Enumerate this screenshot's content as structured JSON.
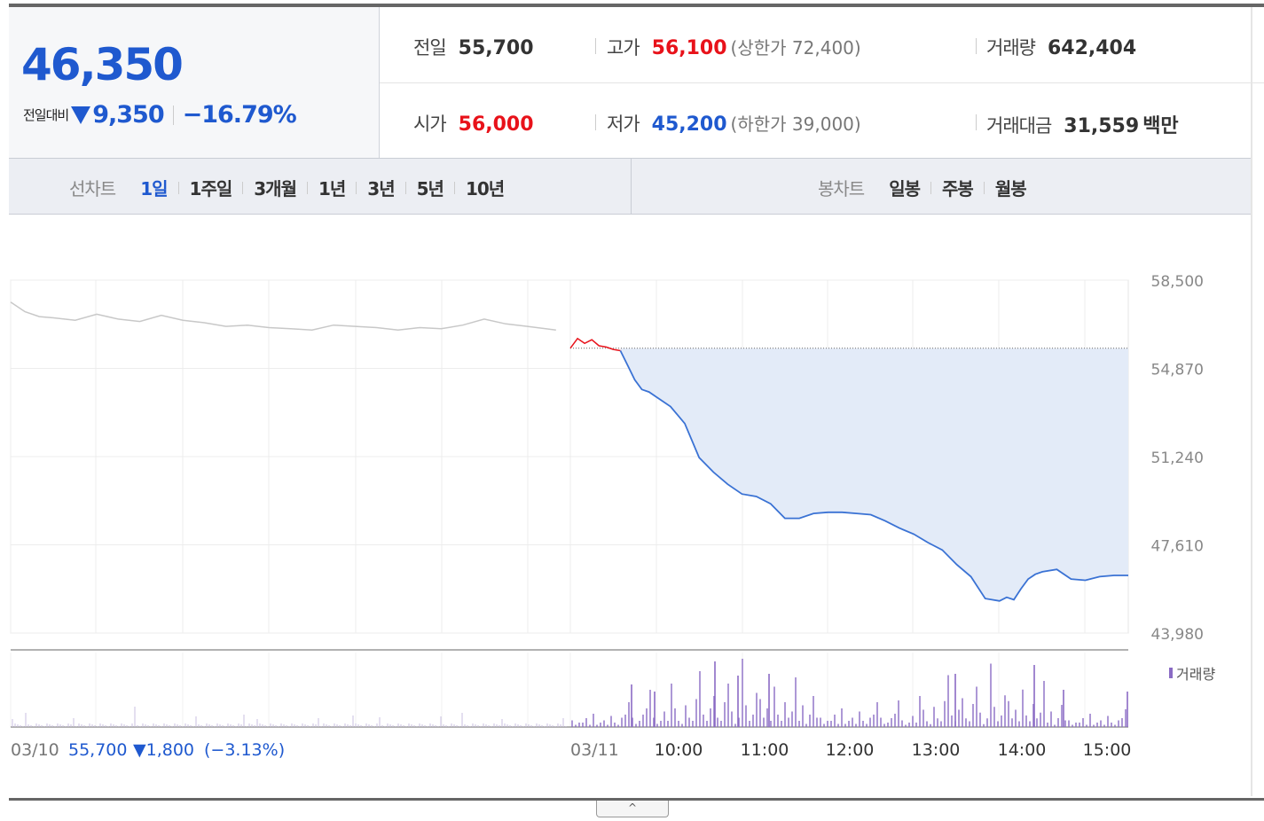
{
  "quote": {
    "price": "46,350",
    "change_label": "전일대비",
    "change_value": "9,350",
    "change_pct": "−16.79%"
  },
  "stats": {
    "prev_label": "전일",
    "prev_value": "55,700",
    "high_label": "고가",
    "high_value": "56,100",
    "upper_limit": "(상한가 72,400)",
    "volume_label": "거래량",
    "volume_value": "642,404",
    "open_label": "시가",
    "open_value": "56,000",
    "low_label": "저가",
    "low_value": "45,200",
    "lower_limit": "(하한가 39,000)",
    "amount_label": "거래대금",
    "amount_value": "31,559",
    "amount_unit": "백만"
  },
  "line_tabs": {
    "head": "선차트",
    "items": [
      "1일",
      "1주일",
      "3개월",
      "1년",
      "3년",
      "5년",
      "10년"
    ],
    "active_index": 0
  },
  "candle_tabs": {
    "head": "봉차트",
    "items": [
      "일봉",
      "주봉",
      "월봉"
    ]
  },
  "prev_day_summary": {
    "date": "03/10",
    "close": "55,700",
    "change": "▼1,800",
    "pct": "(−3.13%)"
  },
  "toggle_icon": "chevron-up-icon",
  "colors": {
    "accent_blue": "#1f59cf",
    "up_red": "#e8121a",
    "prev_day_line": "#c8c8c8",
    "today_line": "#3a72d4",
    "fill": "#e3ebf8",
    "volume_bar": "#8a6bc4"
  },
  "chart_data": {
    "type": "line",
    "title": "",
    "y_ticks": [
      "58,500",
      "54,870",
      "51,240",
      "47,610",
      "43,980"
    ],
    "ylim": [
      43980,
      58500
    ],
    "x_ticks": [
      "03/10",
      "03/11",
      "10:00",
      "11:00",
      "12:00",
      "13:00",
      "14:00",
      "15:00"
    ],
    "reference_price": 55700,
    "volume_legend": "거래량",
    "series": [
      {
        "segment": "prev_day",
        "x": [
          "03/10 09:00",
          "03/10 09:10",
          "03/10 09:20",
          "03/10 09:30",
          "03/10 09:45",
          "03/10 10:00",
          "03/10 10:15",
          "03/10 10:30",
          "03/10 10:45",
          "03/10 11:00",
          "03/10 11:15",
          "03/10 11:30",
          "03/10 11:45",
          "03/10 12:00",
          "03/10 12:15",
          "03/10 12:30",
          "03/10 12:45",
          "03/10 13:00",
          "03/10 13:15",
          "03/10 13:30",
          "03/10 13:45",
          "03/10 14:00",
          "03/10 14:15",
          "03/10 14:30",
          "03/10 14:45",
          "03/10 15:00",
          "03/10 15:20"
        ],
        "values": [
          57600,
          57200,
          57000,
          56950,
          56850,
          57100,
          56900,
          56800,
          57050,
          56850,
          56750,
          56600,
          56650,
          56550,
          56500,
          56450,
          56650,
          56600,
          56550,
          56450,
          56550,
          56500,
          56650,
          56900,
          56700,
          56600,
          56450
        ]
      },
      {
        "segment": "today",
        "x": [
          "09:00",
          "09:05",
          "09:10",
          "09:15",
          "09:20",
          "09:25",
          "09:30",
          "09:35",
          "09:40",
          "09:45",
          "09:50",
          "09:55",
          "10:00",
          "10:10",
          "10:20",
          "10:30",
          "10:40",
          "10:50",
          "11:00",
          "11:10",
          "11:20",
          "11:30",
          "11:40",
          "11:50",
          "12:00",
          "12:10",
          "12:20",
          "12:30",
          "12:40",
          "12:50",
          "13:00",
          "13:10",
          "13:20",
          "13:30",
          "13:40",
          "13:50",
          "14:00",
          "14:05",
          "14:10",
          "14:15",
          "14:20",
          "14:25",
          "14:30",
          "14:40",
          "14:50",
          "15:00",
          "15:10",
          "15:20",
          "15:30"
        ],
        "values": [
          55700,
          56100,
          55900,
          56050,
          55800,
          55750,
          55650,
          55600,
          55000,
          54400,
          54000,
          53900,
          53700,
          53300,
          52600,
          51200,
          50600,
          50100,
          49700,
          49600,
          49300,
          48700,
          48700,
          48900,
          48950,
          48950,
          48900,
          48850,
          48600,
          48300,
          48050,
          47700,
          47400,
          46800,
          46300,
          45400,
          45300,
          45450,
          45350,
          45800,
          46200,
          46400,
          46500,
          46600,
          46200,
          46150,
          46300,
          46350,
          46350
        ]
      }
    ]
  }
}
